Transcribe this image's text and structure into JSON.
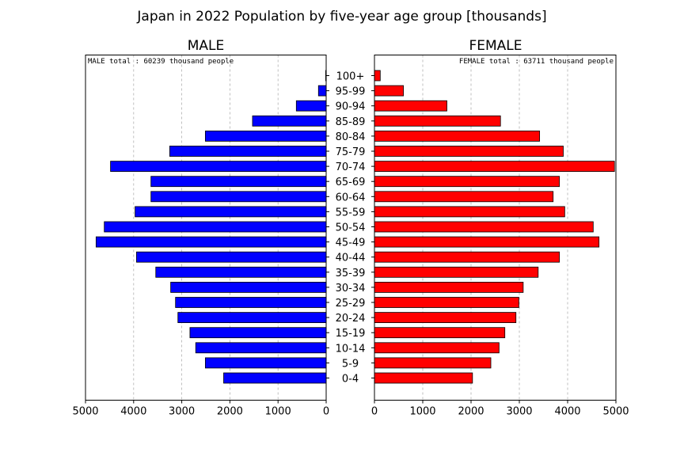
{
  "chart_data": {
    "type": "bar",
    "title": "Japan in 2022   Population by five-year age group [thousands]",
    "categories": [
      "0-4",
      "5-9",
      "10-14",
      "15-19",
      "20-24",
      "25-29",
      "30-34",
      "35-39",
      "40-44",
      "45-49",
      "50-54",
      "55-59",
      "60-64",
      "65-69",
      "70-74",
      "75-79",
      "80-84",
      "85-89",
      "90-94",
      "95-99",
      "100+"
    ],
    "male": {
      "panel_title": "MALE",
      "note": "MALE total : 60239 thousand people",
      "values": [
        2130,
        2510,
        2710,
        2830,
        3080,
        3130,
        3230,
        3540,
        3940,
        4780,
        4610,
        3970,
        3640,
        3640,
        4480,
        3250,
        2510,
        1530,
        620,
        160,
        10
      ],
      "xlim": [
        5000,
        0
      ],
      "ticks": [
        5000,
        4000,
        3000,
        2000,
        1000,
        0
      ],
      "color": "#0000ff"
    },
    "female": {
      "panel_title": "FEMALE",
      "note": "FEMALE total : 63711 thousand people",
      "values": [
        2030,
        2410,
        2580,
        2700,
        2930,
        2990,
        3080,
        3390,
        3830,
        4650,
        4530,
        3940,
        3700,
        3830,
        4970,
        3910,
        3420,
        2610,
        1500,
        600,
        120
      ],
      "xlim": [
        0,
        5000
      ],
      "ticks": [
        0,
        1000,
        2000,
        3000,
        4000,
        5000
      ],
      "color": "#ff0000"
    },
    "grid": true,
    "grid_axis": "x"
  }
}
